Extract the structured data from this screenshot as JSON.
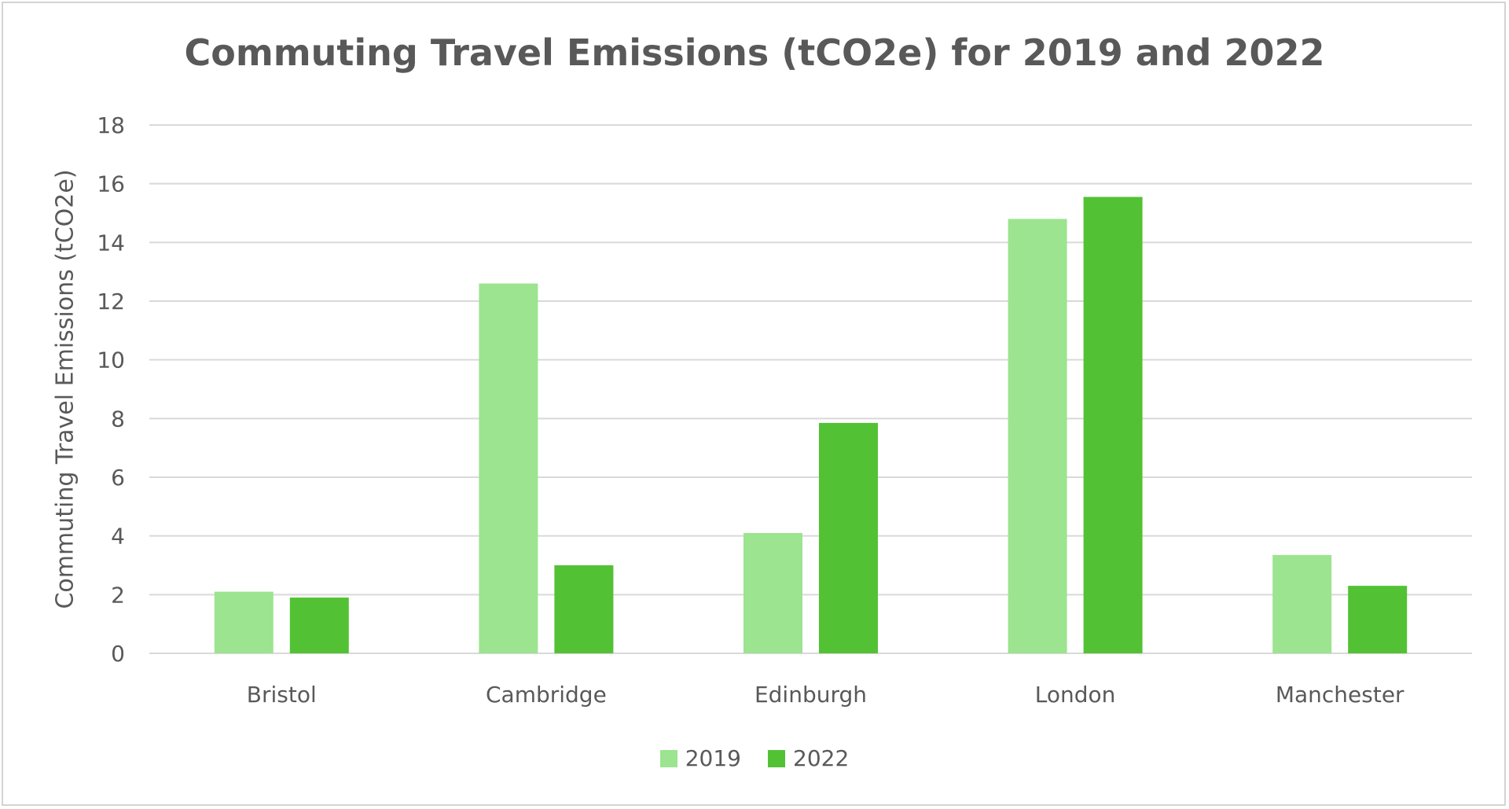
{
  "chart_data": {
    "type": "bar",
    "title": "Commuting Travel Emissions (tCO2e) for 2019 and 2022",
    "xlabel": "",
    "ylabel": "Commuting Travel Emissions (tCO2e)",
    "ylim": [
      0,
      18
    ],
    "yticks": [
      "0",
      "2",
      "4",
      "6",
      "8",
      "10",
      "12",
      "14",
      "16",
      "18"
    ],
    "grid": true,
    "legend_position": "bottom",
    "categories": [
      "Bristol",
      "Cambridge",
      "Edinburgh",
      "London",
      "Manchester"
    ],
    "series": [
      {
        "name": "2019",
        "color": "#9ce48f",
        "values": [
          2.1,
          12.6,
          4.1,
          14.8,
          3.35
        ]
      },
      {
        "name": "2022",
        "color": "#52c234",
        "values": [
          1.9,
          3.0,
          7.85,
          15.55,
          2.3
        ]
      }
    ]
  }
}
